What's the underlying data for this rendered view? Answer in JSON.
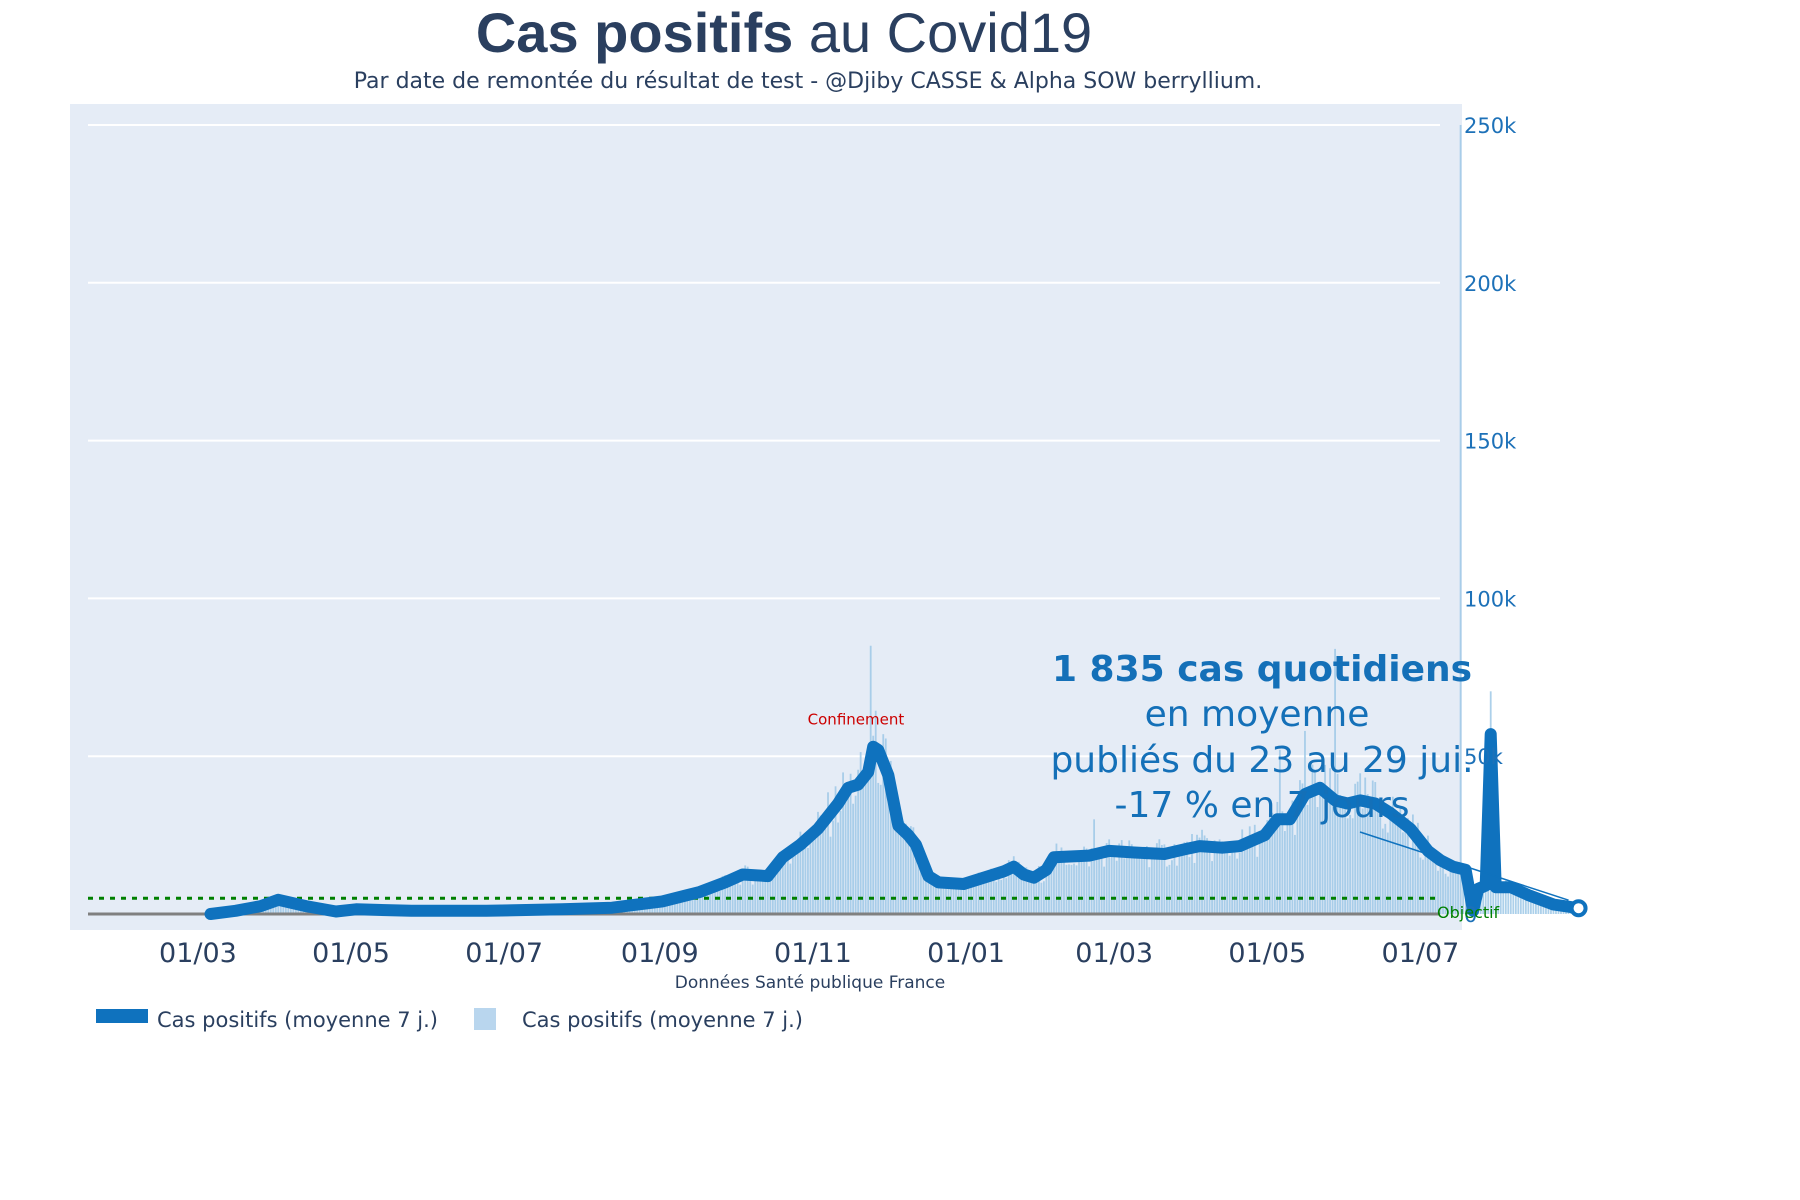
{
  "title": {
    "bold": "Cas positifs",
    "rest": " au Covid19"
  },
  "subtitle": "Par date de remontée du résultat de test - @Djiby CASSE & Alpha SOW berryllium.",
  "source": "Données Santé publique France",
  "colors": {
    "line": "#0f72be",
    "bars": "#9ec8e6",
    "plot_bg": "#e5ecf6",
    "grid": "#ffffff",
    "axis_text": "#2a3f5f",
    "y_tick": "#1d71b8",
    "objective": "#008000",
    "annotation_main": "#1470b8",
    "confinement": "#cc0000",
    "title": "#2a3f5f",
    "baseline": "#808080"
  },
  "annotations": {
    "confinement": "Confinement",
    "objective": "Objectif",
    "summary": [
      "1 835 cas quotidiens",
      "en moyenne",
      "publiés du 23 au 29 jui.",
      "-17 % en 7 jours"
    ]
  },
  "legend": [
    {
      "label": "Cas positifs (moyenne 7 j.)",
      "style": "line"
    },
    {
      "label": "Cas positifs (moyenne 7 j.)",
      "style": "bar"
    }
  ],
  "chart_data": {
    "type": "line",
    "x_axis": {
      "ticks": [
        "01/03",
        "01/05",
        "01/07",
        "01/09",
        "01/11",
        "01/01",
        "01/03",
        "01/05",
        "01/07"
      ],
      "tick_days": [
        45,
        106,
        167,
        229,
        290,
        351,
        410,
        471,
        532
      ],
      "range_days": [
        0,
        539
      ]
    },
    "y_axis": {
      "position": "right",
      "ticks": [
        "0",
        "50k",
        "100k",
        "150k",
        "200k",
        "250k"
      ],
      "tick_values": [
        0,
        50000,
        100000,
        150000,
        200000,
        250000
      ],
      "range": [
        -5000,
        256000
      ]
    },
    "objective_value": 5000,
    "confinement_day": 290,
    "series": [
      {
        "name": "Cas positifs (moyenne 7 j.)",
        "kind": "line",
        "points": [
          [
            50,
            0
          ],
          [
            60,
            1000
          ],
          [
            70,
            2500
          ],
          [
            77,
            4500
          ],
          [
            88,
            2500
          ],
          [
            100,
            800
          ],
          [
            108,
            1500
          ],
          [
            130,
            1000
          ],
          [
            160,
            1000
          ],
          [
            190,
            1500
          ],
          [
            210,
            2000
          ],
          [
            230,
            4000
          ],
          [
            245,
            7000
          ],
          [
            255,
            10000
          ],
          [
            262,
            12500
          ],
          [
            272,
            12000
          ],
          [
            278,
            18000
          ],
          [
            285,
            22000
          ],
          [
            292,
            27000
          ],
          [
            300,
            35000
          ],
          [
            304,
            40000
          ],
          [
            308,
            41000
          ],
          [
            312,
            45000
          ],
          [
            314,
            53000
          ],
          [
            316,
            52000
          ],
          [
            320,
            44000
          ],
          [
            324,
            28000
          ],
          [
            328,
            25000
          ],
          [
            331,
            22000
          ],
          [
            333,
            18000
          ],
          [
            336,
            12000
          ],
          [
            340,
            10000
          ],
          [
            350,
            9500
          ],
          [
            360,
            12000
          ],
          [
            366,
            13500
          ],
          [
            370,
            15000
          ],
          [
            374,
            12500
          ],
          [
            378,
            11500
          ],
          [
            383,
            14000
          ],
          [
            386,
            18000
          ],
          [
            400,
            18500
          ],
          [
            408,
            20000
          ],
          [
            418,
            19500
          ],
          [
            430,
            19000
          ],
          [
            438,
            20500
          ],
          [
            444,
            21500
          ],
          [
            453,
            21000
          ],
          [
            460,
            21500
          ],
          [
            470,
            25000
          ],
          [
            475,
            30000
          ],
          [
            480,
            30000
          ],
          [
            486,
            38000
          ],
          [
            492,
            40000
          ],
          [
            498,
            36000
          ],
          [
            503,
            35000
          ],
          [
            508,
            36000
          ],
          [
            514,
            35000
          ],
          [
            520,
            32000
          ],
          [
            528,
            27000
          ],
          [
            535,
            20000
          ],
          [
            540,
            17000
          ],
          [
            545,
            15000
          ],
          [
            550,
            14000
          ],
          [
            553,
            1000
          ],
          [
            555,
            8000
          ],
          [
            558,
            9000
          ],
          [
            560,
            57000
          ],
          [
            562,
            8500
          ],
          [
            568,
            8500
          ],
          [
            575,
            6000
          ],
          [
            585,
            3000
          ],
          [
            595,
            1835
          ]
        ]
      },
      {
        "name": "Cas positifs (moyenne 7 j.)",
        "kind": "bar",
        "note": "daily raw values shown as light bars, approximated by the smoothed curve with spikes",
        "spikes": [
          [
            313,
            85000
          ],
          [
            320,
            45000
          ],
          [
            402,
            30000
          ],
          [
            476,
            52000
          ],
          [
            486,
            58000
          ],
          [
            498,
            84000
          ],
          [
            548,
            250000
          ]
        ]
      }
    ]
  }
}
